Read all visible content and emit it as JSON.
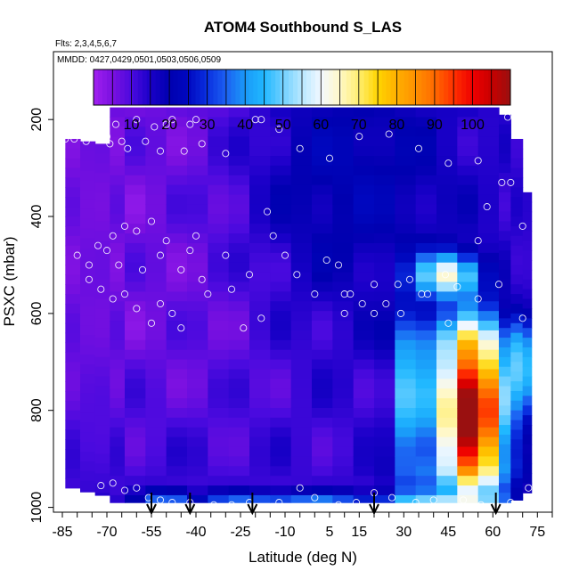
{
  "chart_data": {
    "type": "heatmap",
    "title": "ATOM4 Southbound S_LAS",
    "subtitle_flights": "Flts: 2,3,4,5,6,7",
    "subtitle_dates": "MMDD: 0427,0429,0501,0503,0506,0509",
    "xlabel": "Latitude (deg N)",
    "ylabel": "PSXC (mbar)",
    "xlim": [
      -88,
      80
    ],
    "ylim": [
      1010,
      60
    ],
    "x_ticks": [
      -85,
      -70,
      -55,
      -40,
      -25,
      -10,
      5,
      15,
      30,
      45,
      60,
      75
    ],
    "y_ticks": [
      200,
      400,
      600,
      800,
      1000
    ],
    "colorbar": {
      "range": [
        0,
        110
      ],
      "ticks": [
        10,
        20,
        30,
        40,
        50,
        60,
        70,
        80,
        90,
        100
      ],
      "colors": [
        "#a020f0",
        "#7a10e0",
        "#4b0adf",
        "#1a00c8",
        "#0000b0",
        "#0008c0",
        "#0a30e0",
        "#1c60f2",
        "#1a9af8",
        "#20b8ff",
        "#70d0ff",
        "#b8e8ff",
        "#f2f8ff",
        "#fff8c8",
        "#ffee70",
        "#ffd400",
        "#ffb000",
        "#ff9000",
        "#ff6a00",
        "#ff3000",
        "#ee0000",
        "#c80000",
        "#9a1010"
      ]
    },
    "column_extents": [
      [
        -84,
        -79,
        240,
        960
      ],
      [
        -79,
        -74,
        245,
        968
      ],
      [
        -74,
        -69,
        250,
        975
      ],
      [
        -69,
        -64,
        175,
        990
      ],
      [
        -64,
        -57,
        175,
        990
      ],
      [
        -57,
        -50,
        175,
        990
      ],
      [
        -50,
        -43,
        175,
        990
      ],
      [
        -43,
        -36,
        175,
        990
      ],
      [
        -36,
        -29,
        175,
        990
      ],
      [
        -29,
        -22,
        175,
        990
      ],
      [
        -22,
        -15,
        175,
        990
      ],
      [
        -15,
        -8,
        175,
        990
      ],
      [
        -8,
        -1,
        175,
        990
      ],
      [
        -1,
        6,
        175,
        990
      ],
      [
        6,
        13,
        175,
        990
      ],
      [
        13,
        20,
        175,
        990
      ],
      [
        20,
        27,
        175,
        990
      ],
      [
        27,
        34,
        175,
        990
      ],
      [
        34,
        41,
        175,
        990
      ],
      [
        41,
        48,
        175,
        990
      ],
      [
        48,
        55,
        175,
        990
      ],
      [
        55,
        62,
        175,
        990
      ],
      [
        62,
        66,
        190,
        990
      ],
      [
        66,
        70,
        240,
        985
      ],
      [
        70,
        73,
        350,
        970
      ]
    ],
    "ascent_descent_latitudes": [
      -55,
      -42,
      -21,
      20,
      61
    ],
    "samples": [
      [
        -84,
        240
      ],
      [
        -81,
        240
      ],
      [
        -77,
        245
      ],
      [
        -71,
        240
      ],
      [
        -70,
        235
      ],
      [
        -69,
        250
      ],
      [
        -67,
        210
      ],
      [
        -65,
        245
      ],
      [
        -63,
        260
      ],
      [
        -60,
        200
      ],
      [
        -57,
        245
      ],
      [
        -54,
        215
      ],
      [
        -52,
        265
      ],
      [
        -50,
        210
      ],
      [
        -48,
        200
      ],
      [
        -44,
        265
      ],
      [
        -42,
        210
      ],
      [
        -40,
        200
      ],
      [
        -38,
        250
      ],
      [
        -30,
        270
      ],
      [
        -20,
        200
      ],
      [
        -18,
        200
      ],
      [
        -12,
        220
      ],
      [
        -5,
        260
      ],
      [
        5,
        280
      ],
      [
        15,
        235
      ],
      [
        25,
        230
      ],
      [
        35,
        260
      ],
      [
        45,
        290
      ],
      [
        55,
        285
      ],
      [
        65,
        195
      ],
      [
        70,
        205
      ],
      [
        -80,
        480
      ],
      [
        -76,
        500
      ],
      [
        -73,
        460
      ],
      [
        -70,
        470
      ],
      [
        -68,
        440
      ],
      [
        -66,
        500
      ],
      [
        -64,
        420
      ],
      [
        -60,
        430
      ],
      [
        -58,
        510
      ],
      [
        -55,
        410
      ],
      [
        -52,
        480
      ],
      [
        -50,
        450
      ],
      [
        -45,
        510
      ],
      [
        -42,
        470
      ],
      [
        -40,
        440
      ],
      [
        -38,
        530
      ],
      [
        -36,
        560
      ],
      [
        -30,
        480
      ],
      [
        -28,
        550
      ],
      [
        -22,
        520
      ],
      [
        -16,
        390
      ],
      [
        -14,
        440
      ],
      [
        -10,
        480
      ],
      [
        -6,
        520
      ],
      [
        0,
        560
      ],
      [
        4,
        490
      ],
      [
        8,
        500
      ],
      [
        10,
        560
      ],
      [
        12,
        560
      ],
      [
        16,
        580
      ],
      [
        20,
        540
      ],
      [
        24,
        580
      ],
      [
        28,
        540
      ],
      [
        32,
        530
      ],
      [
        38,
        560
      ],
      [
        44,
        520
      ],
      [
        48,
        545
      ],
      [
        55,
        450
      ],
      [
        58,
        380
      ],
      [
        63,
        330
      ],
      [
        66,
        330
      ],
      [
        70,
        420
      ],
      [
        -76,
        530
      ],
      [
        -72,
        550
      ],
      [
        -68,
        570
      ],
      [
        -64,
        560
      ],
      [
        -60,
        590
      ],
      [
        -55,
        620
      ],
      [
        -52,
        580
      ],
      [
        -48,
        600
      ],
      [
        -45,
        630
      ],
      [
        -24,
        630
      ],
      [
        -18,
        610
      ],
      [
        10,
        600
      ],
      [
        20,
        600
      ],
      [
        29,
        600
      ],
      [
        36,
        560
      ],
      [
        45,
        620
      ],
      [
        55,
        570
      ],
      [
        62,
        540
      ],
      [
        70,
        610
      ],
      [
        -72,
        955
      ],
      [
        -68,
        950
      ],
      [
        -64,
        965
      ],
      [
        -60,
        960
      ],
      [
        -56,
        980
      ],
      [
        -52,
        985
      ],
      [
        -48,
        990
      ],
      [
        -42,
        990
      ],
      [
        -34,
        995
      ],
      [
        -28,
        995
      ],
      [
        -22,
        990
      ],
      [
        -12,
        990
      ],
      [
        -5,
        960
      ],
      [
        0,
        980
      ],
      [
        8,
        995
      ],
      [
        14,
        990
      ],
      [
        20,
        970
      ],
      [
        26,
        980
      ],
      [
        34,
        990
      ],
      [
        40,
        985
      ],
      [
        50,
        985
      ],
      [
        56,
        995
      ],
      [
        66,
        990
      ],
      [
        72,
        960
      ]
    ]
  }
}
